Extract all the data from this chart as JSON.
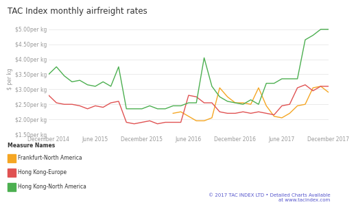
{
  "title": "TAC Index monthly airfreight rates",
  "ylabel": "$ per kg",
  "ylim": [
    1.5,
    5.2
  ],
  "yticks": [
    1.5,
    2.0,
    2.5,
    3.0,
    3.5,
    4.0,
    4.5,
    5.0
  ],
  "ytick_labels": [
    "$1.50per kg",
    "$2.00per kg",
    "$2.50per kg",
    "$3.00per kg",
    "$3.50per kg",
    "$4.00per kg",
    "$4.50per kg",
    "$5.00per kg"
  ],
  "xtick_labels": [
    "December 2014",
    "June 2015",
    "December 2015",
    "June 2016",
    "December 2016",
    "June 2017",
    "December 2017"
  ],
  "xtick_positions": [
    0,
    6,
    12,
    18,
    24,
    30,
    36
  ],
  "background_color": "#ffffff",
  "grid_color": "#e8e8e8",
  "series": {
    "Frankfurt-North America": {
      "color": "#f5a623",
      "values": [
        null,
        null,
        null,
        null,
        null,
        null,
        null,
        null,
        null,
        null,
        null,
        null,
        null,
        null,
        null,
        null,
        2.2,
        2.25,
        2.1,
        1.95,
        1.95,
        2.05,
        3.05,
        2.75,
        2.55,
        2.55,
        2.5,
        3.05,
        2.45,
        2.1,
        2.05,
        2.2,
        2.45,
        2.5,
        3.05,
        3.1,
        2.9
      ]
    },
    "Hong Kong-Europe": {
      "color": "#e05252",
      "values": [
        2.8,
        2.55,
        2.5,
        2.5,
        2.45,
        2.35,
        2.45,
        2.4,
        2.55,
        2.6,
        1.9,
        1.85,
        1.9,
        1.95,
        1.85,
        1.9,
        1.9,
        1.9,
        2.8,
        2.75,
        2.55,
        2.55,
        2.25,
        2.2,
        2.2,
        2.25,
        2.2,
        2.25,
        2.2,
        2.15,
        2.45,
        2.5,
        3.05,
        3.15,
        2.95,
        3.1,
        3.1
      ]
    },
    "Hong Kong-North America": {
      "color": "#4caf50",
      "values": [
        3.5,
        3.75,
        3.45,
        3.25,
        3.3,
        3.15,
        3.1,
        3.25,
        3.1,
        3.75,
        2.35,
        2.35,
        2.35,
        2.45,
        2.35,
        2.35,
        2.45,
        2.45,
        2.55,
        2.55,
        4.05,
        3.1,
        2.75,
        2.6,
        2.55,
        2.5,
        2.65,
        2.5,
        3.2,
        3.2,
        3.35,
        3.35,
        3.35,
        4.65,
        4.8,
        5.0,
        5.0
      ]
    }
  },
  "n_points": 37,
  "legend_title": "Measure Names",
  "copyright_text": "© 2017 TAC INDEX LTD • Detailed Charts Available\nat www.tacindex.com",
  "copyright_color": "#5555cc"
}
